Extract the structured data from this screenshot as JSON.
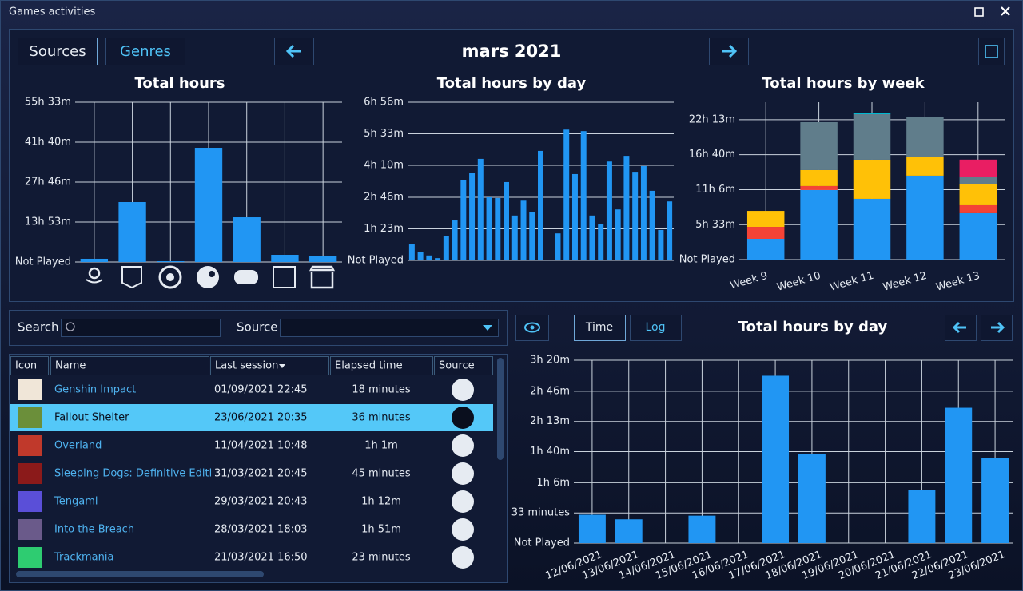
{
  "window": {
    "title": "Games activities"
  },
  "toolbar": {
    "tabs": [
      "Sources",
      "Genres"
    ],
    "period": "mars 2021"
  },
  "chart_data": [
    {
      "type": "bar",
      "title": "Total hours",
      "color": "#2196f3",
      "categories": [
        null,
        null,
        null,
        null,
        null,
        null,
        null
      ],
      "values": [
        67,
        1250,
        17,
        2383,
        933,
        150,
        117
      ],
      "ylim": [
        0,
        3333
      ],
      "yticks": [
        {
          "value": 0,
          "label": "Not Played"
        },
        {
          "value": 833,
          "label": "13h 53m"
        },
        {
          "value": 1666,
          "label": "27h 46m"
        },
        {
          "value": 2500,
          "label": "41h 40m"
        },
        {
          "value": 3333,
          "label": "55h 33m"
        }
      ],
      "grid": "both"
    },
    {
      "type": "bar",
      "title": "Total hours by day",
      "color": "#2196f3",
      "categories": [
        null,
        null,
        null,
        null,
        null,
        null,
        null,
        null,
        null,
        null,
        null,
        null,
        null,
        null,
        null,
        null,
        null,
        null,
        null,
        null,
        null,
        null,
        null,
        null,
        null,
        null,
        null,
        null,
        null,
        null,
        null
      ],
      "values": [
        42,
        21,
        13,
        6,
        65,
        105,
        212,
        231,
        267,
        166,
        164,
        206,
        118,
        157,
        128,
        288,
        0,
        71,
        344,
        227,
        340,
        118,
        95,
        260,
        134,
        275,
        233,
        248,
        183,
        80,
        155
      ],
      "ylim": [
        0,
        416
      ],
      "yticks": [
        {
          "value": 0,
          "label": "Not Played"
        },
        {
          "value": 83,
          "label": "1h 23m"
        },
        {
          "value": 166,
          "label": "2h 46m"
        },
        {
          "value": 250,
          "label": "4h 10m"
        },
        {
          "value": 333,
          "label": "5h 33m"
        },
        {
          "value": 416,
          "label": "6h 56m"
        }
      ],
      "grid": "y"
    },
    {
      "type": "stacked_bar",
      "title": "Total hours by week",
      "categories": [
        "Week 9",
        "Week 10",
        "Week 11",
        "Week 12",
        "Week 13"
      ],
      "series": [
        {
          "color": "#2196f3",
          "values": [
            198,
            663,
            579,
            800,
            442
          ]
        },
        {
          "color": "#f44336",
          "values": [
            114,
            38,
            0,
            0,
            76
          ]
        },
        {
          "color": "#ffc107",
          "values": [
            152,
            152,
            373,
            175,
            198
          ]
        },
        {
          "color": "#607d8b",
          "values": [
            0,
            457,
            434,
            381,
            69
          ]
        },
        {
          "color": "#e91e63",
          "values": [
            0,
            0,
            0,
            0,
            168
          ]
        },
        {
          "color": "#00bcd4",
          "values": [
            0,
            0,
            15,
            0,
            0
          ]
        }
      ],
      "ylim": [
        0,
        1500
      ],
      "yticks": [
        {
          "value": 0,
          "label": "Not Played"
        },
        {
          "value": 333,
          "label": "5h 33m"
        },
        {
          "value": 666,
          "label": "11h 6m"
        },
        {
          "value": 1000,
          "label": "16h 40m"
        },
        {
          "value": 1333,
          "label": "22h 13m"
        }
      ],
      "grid": "both"
    },
    {
      "type": "bar",
      "title": "Total hours by day",
      "color": "#2196f3",
      "categories": [
        "12/06/2021",
        "13/06/2021",
        "14/06/2021",
        "15/06/2021",
        "16/06/2021",
        "17/06/2021",
        "18/06/2021",
        "19/06/2021",
        "20/06/2021",
        "21/06/2021",
        "22/06/2021",
        "23/06/2021"
      ],
      "values": [
        31,
        26,
        0,
        30,
        0,
        183,
        97,
        0,
        0,
        58,
        148,
        93
      ],
      "ylim": [
        0,
        200
      ],
      "yticks": [
        {
          "value": 0,
          "label": "Not Played"
        },
        {
          "value": 33,
          "label": "33 minutes"
        },
        {
          "value": 66,
          "label": "1h 6m"
        },
        {
          "value": 100,
          "label": "1h 40m"
        },
        {
          "value": 133,
          "label": "2h 13m"
        },
        {
          "value": 166,
          "label": "2h 46m"
        },
        {
          "value": 200,
          "label": "3h 20m"
        }
      ],
      "grid": "both"
    }
  ],
  "filters": {
    "search_label": "Search",
    "source_label": "Source"
  },
  "table": {
    "columns": [
      "Icon",
      "Name",
      "Last session",
      "Elapsed time",
      "Source"
    ],
    "selected": 1,
    "rows": [
      [
        "Genshin Impact",
        "01/09/2021 22:45",
        "18 minutes"
      ],
      [
        "Fallout Shelter",
        "23/06/2021 20:35",
        "36 minutes"
      ],
      [
        "Overland",
        "11/04/2021 10:48",
        "1h 1m"
      ],
      [
        "Sleeping Dogs: Definitive Editi",
        "31/03/2021 20:45",
        "45 minutes"
      ],
      [
        "Tengami",
        "29/03/2021 20:43",
        "1h 12m"
      ],
      [
        "Into the Breach",
        "28/03/2021 18:03",
        "1h 51m"
      ],
      [
        "Trackmania",
        "21/03/2021 16:50",
        "23 minutes"
      ]
    ]
  },
  "detail": {
    "modes": [
      "Time",
      "Log"
    ]
  }
}
